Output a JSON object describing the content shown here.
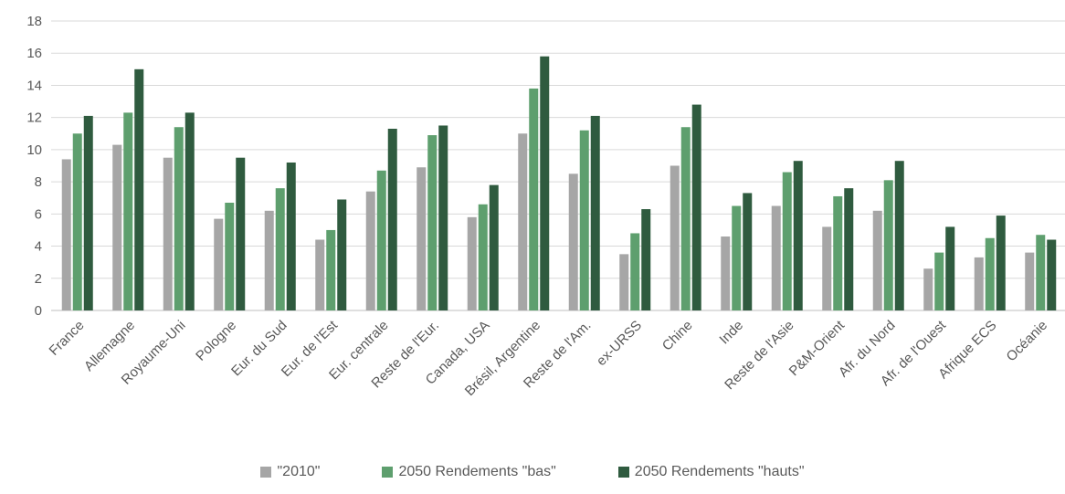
{
  "chart_data": {
    "type": "bar",
    "title": "",
    "xlabel": "",
    "ylabel": "",
    "ylim": [
      0,
      18
    ],
    "yticks": [
      0,
      2,
      4,
      6,
      8,
      10,
      12,
      14,
      16,
      18
    ],
    "grid": true,
    "legend_position": "bottom",
    "categories": [
      "France",
      "Allemagne",
      "Royaume-Uni",
      "Pologne",
      "Eur. du Sud",
      "Eur. de l'Est",
      "Eur. centrale",
      "Reste de l'Eur.",
      "Canada, USA",
      "Brésil, Argentine",
      "Reste de l'Am.",
      "ex-URSS",
      "Chine",
      "Inde",
      "Reste de l'Asie",
      "P&M-Orient",
      "Afr. du Nord",
      "Afr. de l'Ouest",
      "Afrique ECS",
      "Océanie"
    ],
    "series": [
      {
        "name": "\"2010\"",
        "color": "#a6a6a6",
        "values": [
          9.4,
          10.3,
          9.5,
          5.7,
          6.2,
          4.4,
          7.4,
          8.9,
          5.8,
          11.0,
          8.5,
          3.5,
          9.0,
          4.6,
          6.5,
          5.2,
          6.2,
          2.6,
          3.3,
          3.6
        ]
      },
      {
        "name": "2050 Rendements \"bas\"",
        "color": "#5e9f6e",
        "values": [
          11.0,
          12.3,
          11.4,
          6.7,
          7.6,
          5.0,
          8.7,
          10.9,
          6.6,
          13.8,
          11.2,
          4.8,
          11.4,
          6.5,
          8.6,
          7.1,
          8.1,
          3.6,
          4.5,
          4.7
        ]
      },
      {
        "name": "2050 Rendements \"hauts\"",
        "color": "#2f5b3f",
        "values": [
          12.1,
          15.0,
          12.3,
          9.5,
          9.2,
          6.9,
          11.3,
          11.5,
          7.8,
          15.8,
          12.1,
          6.3,
          12.8,
          7.3,
          9.3,
          7.6,
          9.3,
          5.2,
          5.9,
          4.4
        ]
      }
    ]
  }
}
